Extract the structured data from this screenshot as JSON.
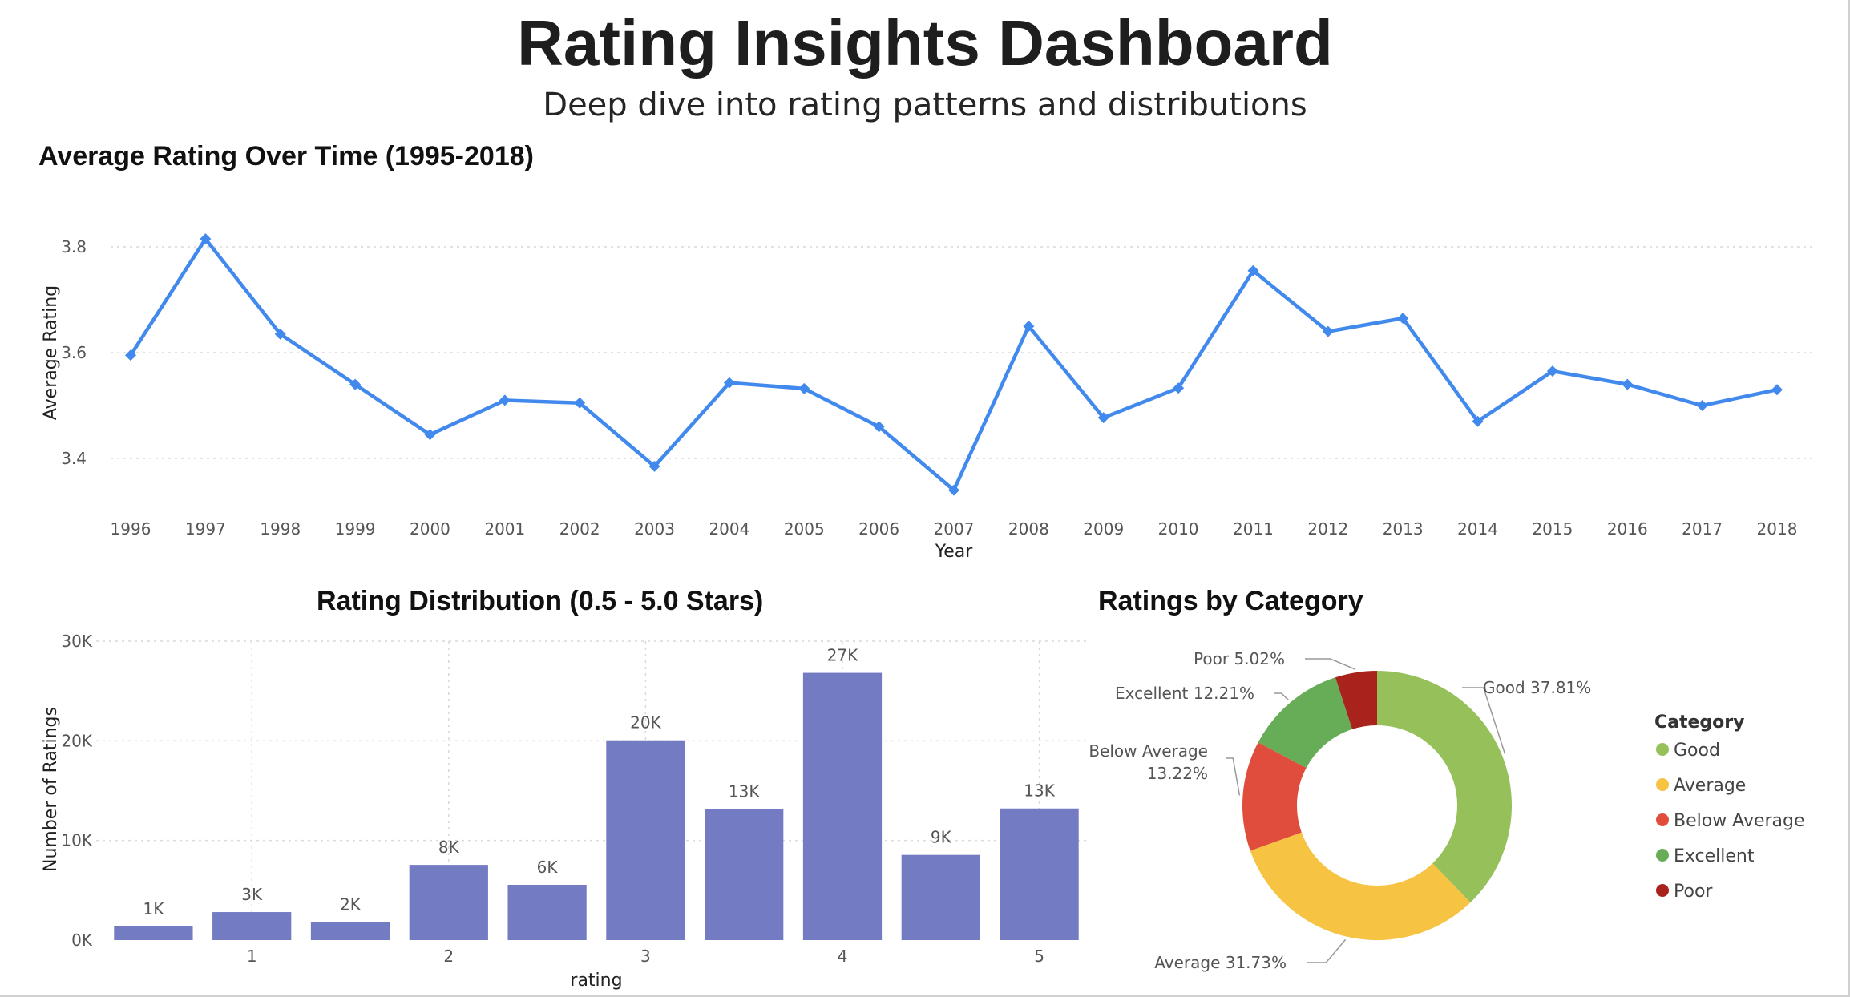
{
  "header": {
    "title": "Rating Insights Dashboard",
    "subtitle": "Deep dive into rating patterns and distributions"
  },
  "colors": {
    "line": "#4189ec",
    "bar": "#737bc2",
    "grid": "#d9d9d9"
  },
  "chart_data": [
    {
      "type": "line",
      "title": "Average Rating Over Time (1995-2018)",
      "xlabel": "Year",
      "ylabel": "Average Rating",
      "x": [
        "1996",
        "1997",
        "1998",
        "1999",
        "2000",
        "2001",
        "2002",
        "2003",
        "2004",
        "2005",
        "2006",
        "2007",
        "2008",
        "2009",
        "2010",
        "2011",
        "2012",
        "2013",
        "2014",
        "2015",
        "2016",
        "2017",
        "2018"
      ],
      "values": [
        3.595,
        3.815,
        3.635,
        3.54,
        3.445,
        3.51,
        3.505,
        3.385,
        3.543,
        3.532,
        3.46,
        3.34,
        3.65,
        3.477,
        3.533,
        3.755,
        3.64,
        3.665,
        3.47,
        3.565,
        3.54,
        3.5,
        3.53
      ],
      "ylim": [
        3.3,
        3.85
      ],
      "yticks": [
        "3.4",
        "3.6",
        "3.8"
      ],
      "grid": true,
      "marker": "diamond"
    },
    {
      "type": "bar",
      "title": "Rating Distribution (0.5 - 5.0 Stars)",
      "xlabel": "rating",
      "ylabel": "Number of Ratings",
      "categories": [
        0.5,
        1,
        1.5,
        2,
        2.5,
        3,
        3.5,
        4,
        4.5,
        5
      ],
      "xticks": [
        "1",
        "2",
        "3",
        "4",
        "5"
      ],
      "values": [
        1370,
        2811,
        1791,
        7551,
        5550,
        20047,
        13136,
        26818,
        8551,
        13211
      ],
      "data_labels": [
        "1K",
        "3K",
        "2K",
        "8K",
        "6K",
        "20K",
        "13K",
        "27K",
        "9K",
        "13K"
      ],
      "ylim": [
        0,
        30000
      ],
      "yticks": [
        "0K",
        "10K",
        "20K",
        "30K"
      ],
      "grid": true
    },
    {
      "type": "pie",
      "title": "Ratings by Category",
      "legend_title": "Category",
      "legend_position": "right",
      "donut": true,
      "slices": [
        {
          "name": "Good",
          "value": 37.81,
          "label": "Good 37.81%",
          "color": "#96c05a"
        },
        {
          "name": "Average",
          "value": 31.73,
          "label": "Average 31.73%",
          "color": "#f6c343"
        },
        {
          "name": "Below Average",
          "value": 13.22,
          "label_lines": [
            "Below Average",
            "13.22%"
          ],
          "color": "#e04d3c"
        },
        {
          "name": "Excellent",
          "value": 12.21,
          "label": "Excellent 12.21%",
          "color": "#67ad58"
        },
        {
          "name": "Poor",
          "value": 5.02,
          "label": "Poor 5.02%",
          "color": "#a8231b"
        }
      ]
    }
  ]
}
